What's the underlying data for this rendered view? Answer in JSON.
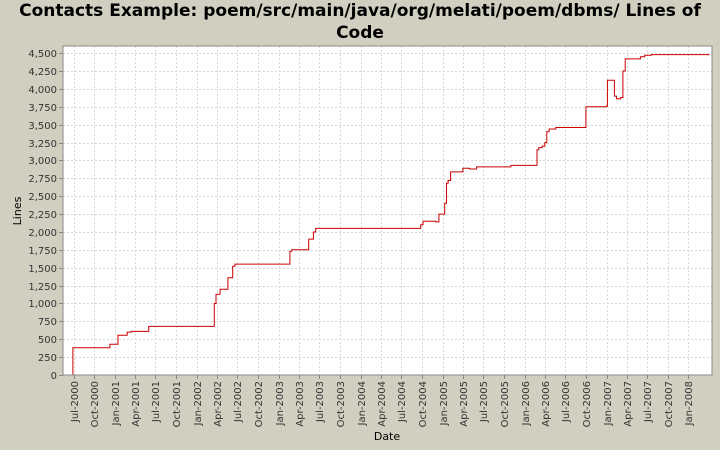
{
  "chart_data": {
    "type": "line",
    "title": "Contacts Example: poem/src/main/java/org/melati/poem/dbms/ Lines of Code",
    "xlabel": "Date",
    "ylabel": "Lines",
    "ylim": [
      0,
      4600
    ],
    "y_ticks": [
      0,
      250,
      500,
      750,
      1000,
      1250,
      1500,
      1750,
      2000,
      2250,
      2500,
      2750,
      3000,
      3250,
      3500,
      3750,
      4000,
      4250,
      4500
    ],
    "x_range": [
      "2000-05-15",
      "2008-04-15"
    ],
    "x_ticks": [
      {
        "date": "2000-07-01",
        "label": "Jul-2000"
      },
      {
        "date": "2000-10-01",
        "label": "Oct-2000"
      },
      {
        "date": "2001-01-01",
        "label": "Jan-2001"
      },
      {
        "date": "2001-04-01",
        "label": "Apr-2001"
      },
      {
        "date": "2001-07-01",
        "label": "Jul-2001"
      },
      {
        "date": "2001-10-01",
        "label": "Oct-2001"
      },
      {
        "date": "2002-01-01",
        "label": "Jan-2002"
      },
      {
        "date": "2002-04-01",
        "label": "Apr-2002"
      },
      {
        "date": "2002-07-01",
        "label": "Jul-2002"
      },
      {
        "date": "2002-10-01",
        "label": "Oct-2002"
      },
      {
        "date": "2003-01-01",
        "label": "Jan-2003"
      },
      {
        "date": "2003-04-01",
        "label": "Apr-2003"
      },
      {
        "date": "2003-07-01",
        "label": "Jul-2003"
      },
      {
        "date": "2003-10-01",
        "label": "Oct-2003"
      },
      {
        "date": "2004-01-01",
        "label": "Jan-2004"
      },
      {
        "date": "2004-04-01",
        "label": "Apr-2004"
      },
      {
        "date": "2004-07-01",
        "label": "Jul-2004"
      },
      {
        "date": "2004-10-01",
        "label": "Oct-2004"
      },
      {
        "date": "2005-01-01",
        "label": "Jan-2005"
      },
      {
        "date": "2005-04-01",
        "label": "Apr-2005"
      },
      {
        "date": "2005-07-01",
        "label": "Jul-2005"
      },
      {
        "date": "2005-10-01",
        "label": "Oct-2005"
      },
      {
        "date": "2006-01-01",
        "label": "Jan-2006"
      },
      {
        "date": "2006-04-01",
        "label": "Apr-2006"
      },
      {
        "date": "2006-07-01",
        "label": "Jul-2006"
      },
      {
        "date": "2006-10-01",
        "label": "Oct-2006"
      },
      {
        "date": "2007-01-01",
        "label": "Jan-2007"
      },
      {
        "date": "2007-04-01",
        "label": "Apr-2007"
      },
      {
        "date": "2007-07-01",
        "label": "Jul-2007"
      },
      {
        "date": "2007-10-01",
        "label": "Oct-2007"
      },
      {
        "date": "2008-01-01",
        "label": "Jan-2008"
      }
    ],
    "grid": true,
    "line_color": "#cc0000",
    "series": [
      {
        "step": true,
        "points": [
          [
            "2000-06-25",
            0
          ],
          [
            "2000-06-28",
            380
          ],
          [
            "2000-12-10",
            430
          ],
          [
            "2001-01-15",
            555
          ],
          [
            "2001-02-25",
            600
          ],
          [
            "2001-03-15",
            610
          ],
          [
            "2001-06-01",
            680
          ],
          [
            "2002-03-20",
            1000
          ],
          [
            "2002-03-28",
            1130
          ],
          [
            "2002-04-15",
            1200
          ],
          [
            "2002-05-20",
            1360
          ],
          [
            "2002-06-10",
            1520
          ],
          [
            "2002-06-20",
            1550
          ],
          [
            "2003-02-20",
            1730
          ],
          [
            "2003-02-28",
            1750
          ],
          [
            "2003-05-15",
            1900
          ],
          [
            "2003-06-05",
            2000
          ],
          [
            "2003-06-15",
            2050
          ],
          [
            "2004-09-25",
            2100
          ],
          [
            "2004-10-05",
            2150
          ],
          [
            "2004-12-01",
            2140
          ],
          [
            "2004-12-15",
            2250
          ],
          [
            "2005-01-10",
            2400
          ],
          [
            "2005-01-18",
            2680
          ],
          [
            "2005-01-25",
            2720
          ],
          [
            "2005-02-05",
            2840
          ],
          [
            "2005-04-01",
            2890
          ],
          [
            "2005-05-01",
            2880
          ],
          [
            "2005-06-01",
            2910
          ],
          [
            "2005-11-01",
            2930
          ],
          [
            "2006-02-25",
            3150
          ],
          [
            "2006-03-05",
            3180
          ],
          [
            "2006-03-20",
            3200
          ],
          [
            "2006-04-01",
            3250
          ],
          [
            "2006-04-10",
            3400
          ],
          [
            "2006-04-20",
            3440
          ],
          [
            "2006-05-20",
            3460
          ],
          [
            "2006-10-01",
            3750
          ],
          [
            "2007-01-01",
            3760
          ],
          [
            "2007-01-05",
            4120
          ],
          [
            "2007-02-05",
            3900
          ],
          [
            "2007-02-15",
            3860
          ],
          [
            "2007-03-05",
            3880
          ],
          [
            "2007-03-15",
            4250
          ],
          [
            "2007-03-25",
            4420
          ],
          [
            "2007-06-01",
            4450
          ],
          [
            "2007-06-20",
            4470
          ],
          [
            "2007-07-20",
            4480
          ],
          [
            "2008-04-01",
            4470
          ]
        ]
      }
    ]
  }
}
